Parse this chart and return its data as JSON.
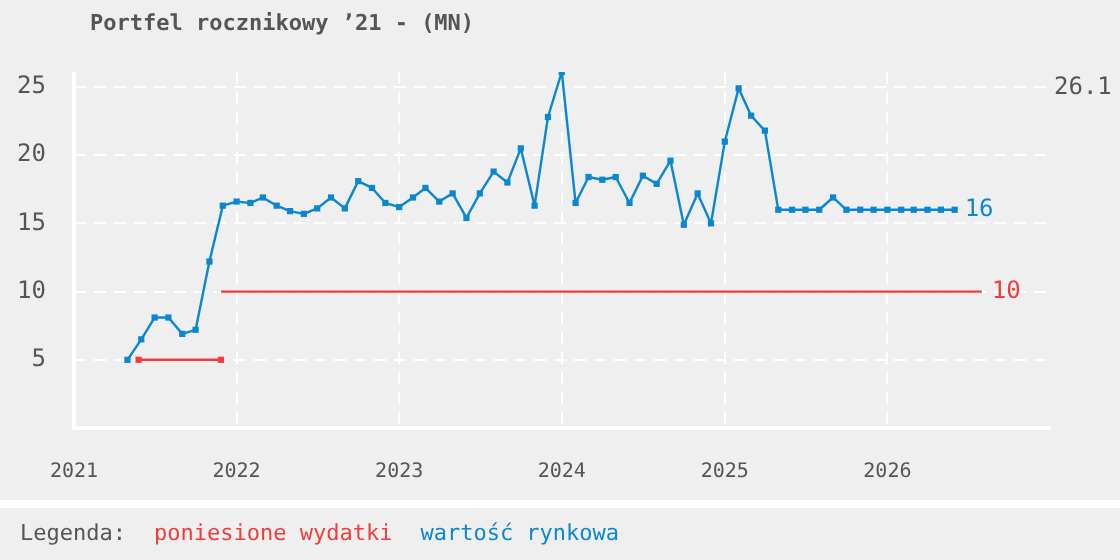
{
  "chart_data": {
    "type": "line",
    "title": "Portfel rocznikowy ’21 - (MN)",
    "legend_title": "Legenda:",
    "legend": "bottom",
    "grid": true,
    "marker": "square",
    "line_style": "solid",
    "xlim": [
      "2021-01",
      "2027-01"
    ],
    "xticks": [
      "2021",
      "2022",
      "2023",
      "2024",
      "2025",
      "2026"
    ],
    "ylim": [
      0,
      26.1
    ],
    "yticks": [
      5,
      10,
      15,
      20,
      25
    ],
    "series": [
      {
        "name": "poniesione wydatki",
        "color": "#f03c3c",
        "x": [
          "2021-05-26",
          "2021-11-27"
        ],
        "values": [
          5,
          5
        ]
      },
      {
        "color": "#f03c3c",
        "marker": "none",
        "x": [
          "2021-11-27",
          "2026-08"
        ],
        "values": [
          10,
          10
        ],
        "value_labels": [
          null,
          "10"
        ]
      },
      {
        "name": "wartość rynkowa",
        "color": "#0a87cf",
        "x": [
          "2021-05",
          "2021-06",
          "2021-07",
          "2021-08",
          "2021-09",
          "2021-10",
          "2021-11",
          "2021-12",
          "2022-01",
          "2022-02",
          "2022-03",
          "2022-04",
          "2022-05",
          "2022-06",
          "2022-07",
          "2022-08",
          "2022-09",
          "2022-10",
          "2022-11",
          "2022-12",
          "2023-01",
          "2023-02",
          "2023-03",
          "2023-04",
          "2023-05",
          "2023-06",
          "2023-07",
          "2023-08",
          "2023-09",
          "2023-10",
          "2023-11",
          "2023-12",
          "2024-01",
          "2024-02",
          "2024-03",
          "2024-04",
          "2024-05",
          "2024-06",
          "2024-07",
          "2024-08",
          "2024-09",
          "2024-10",
          "2024-11",
          "2024-12",
          "2025-01",
          "2025-02",
          "2025-03",
          "2025-04",
          "2025-05",
          "2025-06",
          "2025-07",
          "2025-08",
          "2025-09",
          "2025-10",
          "2025-11",
          "2025-12",
          "2026-01",
          "2026-02",
          "2026-03",
          "2026-04",
          "2026-05",
          "2026-06"
        ],
        "values": [
          5,
          6.5,
          8.1,
          8.1,
          6.9,
          7.2,
          12.2,
          16.3,
          16.6,
          16.5,
          16.9,
          16.3,
          15.9,
          15.7,
          16.1,
          16.9,
          16.1,
          18.1,
          17.6,
          16.5,
          16.2,
          16.9,
          17.6,
          16.6,
          17.2,
          15.4,
          17.2,
          18.8,
          18,
          20.5,
          16.3,
          22.8,
          26.1,
          16.5,
          18.4,
          18.2,
          18.4,
          16.5,
          18.5,
          17.9,
          19.6,
          14.9,
          17.2,
          15,
          21,
          24.9,
          22.9,
          21.8,
          16,
          16,
          16,
          16,
          16.9,
          16,
          16,
          16,
          16,
          16,
          16,
          16,
          16,
          16
        ],
        "value_labels": [
          null,
          null,
          null,
          null,
          null,
          null,
          null,
          null,
          null,
          null,
          null,
          null,
          null,
          null,
          null,
          null,
          null,
          null,
          null,
          null,
          null,
          null,
          null,
          null,
          null,
          null,
          null,
          null,
          null,
          null,
          null,
          null,
          null,
          null,
          null,
          null,
          null,
          null,
          null,
          null,
          null,
          null,
          null,
          null,
          null,
          null,
          null,
          null,
          null,
          null,
          null,
          null,
          null,
          null,
          null,
          null,
          null,
          null,
          null,
          null,
          null,
          "16"
        ]
      }
    ],
    "annotations": [
      "26.1"
    ]
  }
}
